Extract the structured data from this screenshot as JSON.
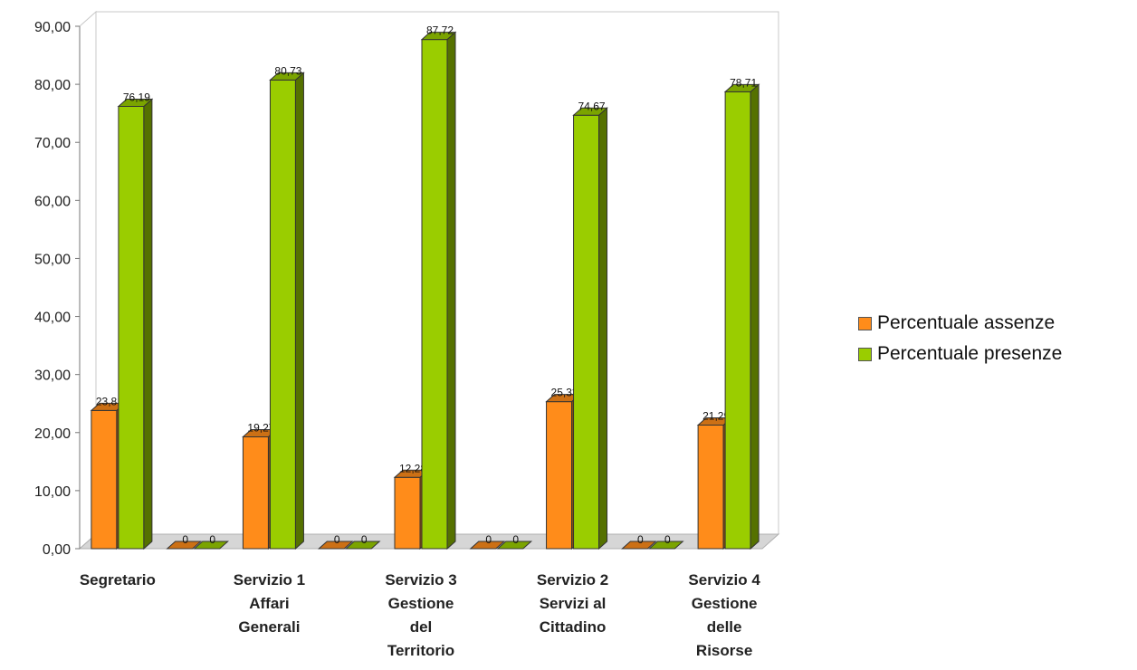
{
  "chart_data": {
    "type": "bar",
    "style": "3d-clustered-column",
    "categories": [
      [
        "Segretario"
      ],
      [],
      [
        "Servizio 1",
        "Affari",
        "Generali"
      ],
      [],
      [
        "Servizio 3",
        "Gestione",
        "del",
        "Territorio"
      ],
      [],
      [
        "Servizio 2",
        "Servizi  al",
        "Cittadino"
      ],
      [],
      [
        "Servizio 4",
        "Gestione",
        "delle",
        "Risorse"
      ]
    ],
    "series": [
      {
        "name": "Percentuale assenze",
        "color": "#FF8C1A",
        "values": [
          23.81,
          0,
          19.27,
          0,
          12.28,
          0,
          25.33,
          0,
          21.29
        ],
        "labels": [
          "23,81",
          "0",
          "19,27",
          "0",
          "12,28",
          "0",
          "25,33",
          "0",
          "21,29"
        ]
      },
      {
        "name": "Percentuale presenze",
        "color": "#9ACD00",
        "values": [
          76.19,
          0,
          80.73,
          0,
          87.72,
          0,
          74.67,
          0,
          78.71
        ],
        "labels": [
          "76,19",
          "0",
          "80,73",
          "0",
          "87,72",
          "0",
          "74,67",
          "0",
          "78,71"
        ]
      }
    ],
    "y_ticks": [
      "0,00",
      "10,00",
      "20,00",
      "30,00",
      "40,00",
      "50,00",
      "60,00",
      "70,00",
      "80,00",
      "90,00"
    ],
    "ylim": [
      0,
      90
    ],
    "grid": false,
    "legend_position": "right"
  }
}
